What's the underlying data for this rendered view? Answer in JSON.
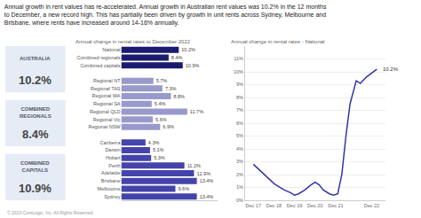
{
  "title": "Annual growth in rent values has re-accelerated. Annual growth in Australian rent values was 10.2% in the 12 months\nto December, a new record high. This has partially been driven by growth in unit rents across Sydney, Melbourne and\nBrisbane, where rents have increased around 14-16% annually.",
  "annotations": [
    {
      "label": "AUSTRALIA",
      "value": "10.2%"
    },
    {
      "label": "COMBINED\nREGIONALS",
      "value": "8.4%"
    },
    {
      "label": "COMBINED\nCAPITALS",
      "value": "10.9%"
    }
  ],
  "footer": "© 2023 CoreLogic, Inc. All Rights Reserved.",
  "chart_data": [
    {
      "type": "bar",
      "title": "Annual change in rental rates to December 2022",
      "orientation": "horizontal",
      "categories": [
        "National",
        "Combined regionals",
        "Combined capitals",
        null,
        "Regional NT",
        "Regional TAS",
        "Regional WA",
        "Regional SA",
        "Regional QLD",
        "Regional Vic",
        "Regional NSW",
        null,
        "Canberra",
        "Darwin",
        "Hobart",
        "Perth",
        "Adelaide",
        "Brisbane",
        "Melbourne",
        "Sydney"
      ],
      "values": [
        10.2,
        8.4,
        10.9,
        null,
        5.7,
        7.3,
        8.8,
        5.4,
        11.7,
        5.6,
        6.9,
        null,
        4.3,
        5.1,
        5.3,
        11.2,
        12.9,
        13.4,
        9.6,
        13.4
      ],
      "value_labels": [
        "10.2%",
        "8.4%",
        "10.9%",
        null,
        "5.7%",
        "7.3%",
        "8.8%",
        "5.4%",
        "11.7%",
        "5.6%",
        "6.9%",
        null,
        "4.3%",
        "5.1%",
        "5.3%",
        "11.2%",
        "12.9%",
        "13.4%",
        "9.6%",
        "13.4%"
      ],
      "colors": [
        "#1a1a6e",
        "#1a1a6e",
        "#1a1a6e",
        null,
        "#9999cc",
        "#9999cc",
        "#9999cc",
        "#9999cc",
        "#9999cc",
        "#9999cc",
        "#9999cc",
        null,
        "#4444aa",
        "#4444aa",
        "#4444aa",
        "#4444aa",
        "#4444aa",
        "#4444aa",
        "#4444aa",
        "#4444aa"
      ],
      "xlim": [
        0,
        17
      ],
      "tick_labels": "y",
      "data_labels": true,
      "grid": false
    },
    {
      "type": "line",
      "title": "Annual change in rental rates - National",
      "x": [
        2017.0,
        2017.2,
        2017.4,
        2017.7,
        2018.0,
        2018.2,
        2018.5,
        2018.8,
        2019.0,
        2019.2,
        2019.5,
        2019.8,
        2020.0,
        2020.2,
        2020.4,
        2020.7,
        2020.9,
        2021.1,
        2021.3,
        2021.5,
        2021.7,
        2022.0,
        2022.2,
        2022.5,
        2022.75,
        2023.0
      ],
      "values": [
        2.8,
        2.5,
        2.2,
        1.7,
        1.3,
        1.1,
        0.8,
        0.6,
        0.4,
        0.5,
        0.8,
        1.2,
        1.4,
        1.2,
        0.8,
        0.5,
        0.4,
        0.5,
        2.0,
        5.0,
        7.5,
        9.3,
        9.1,
        9.6,
        9.9,
        10.2
      ],
      "color": "#3333aa",
      "xlim": [
        2016.6,
        2023.4
      ],
      "xticks": [
        {
          "value": 2017.0,
          "label": "Dec 17"
        },
        {
          "value": 2018.0,
          "label": "Dec 18"
        },
        {
          "value": 2019.0,
          "label": "Dec 19"
        },
        {
          "value": 2020.0,
          "label": "Dec 20"
        },
        {
          "value": 2021.0,
          "label": "Dec 21"
        },
        {
          "value": 2022.75,
          "label": "Dec 22"
        }
      ],
      "ylim": [
        0,
        12
      ],
      "yticks": [
        {
          "value": 0,
          "label": "0%"
        },
        {
          "value": 1,
          "label": "1%"
        },
        {
          "value": 2,
          "label": "2%"
        },
        {
          "value": 3,
          "label": "3%"
        },
        {
          "value": 4,
          "label": "4%"
        },
        {
          "value": 5,
          "label": "5%"
        },
        {
          "value": 6,
          "label": "6%"
        },
        {
          "value": 7,
          "label": "7%"
        },
        {
          "value": 8,
          "label": "8%"
        },
        {
          "value": 9,
          "label": "9%"
        },
        {
          "value": 10,
          "label": "10%"
        },
        {
          "value": 11,
          "label": "11%"
        }
      ],
      "grid": true,
      "annotations": [
        {
          "text": "10.2%",
          "x": 2023.2,
          "y": 10.2
        }
      ]
    }
  ]
}
